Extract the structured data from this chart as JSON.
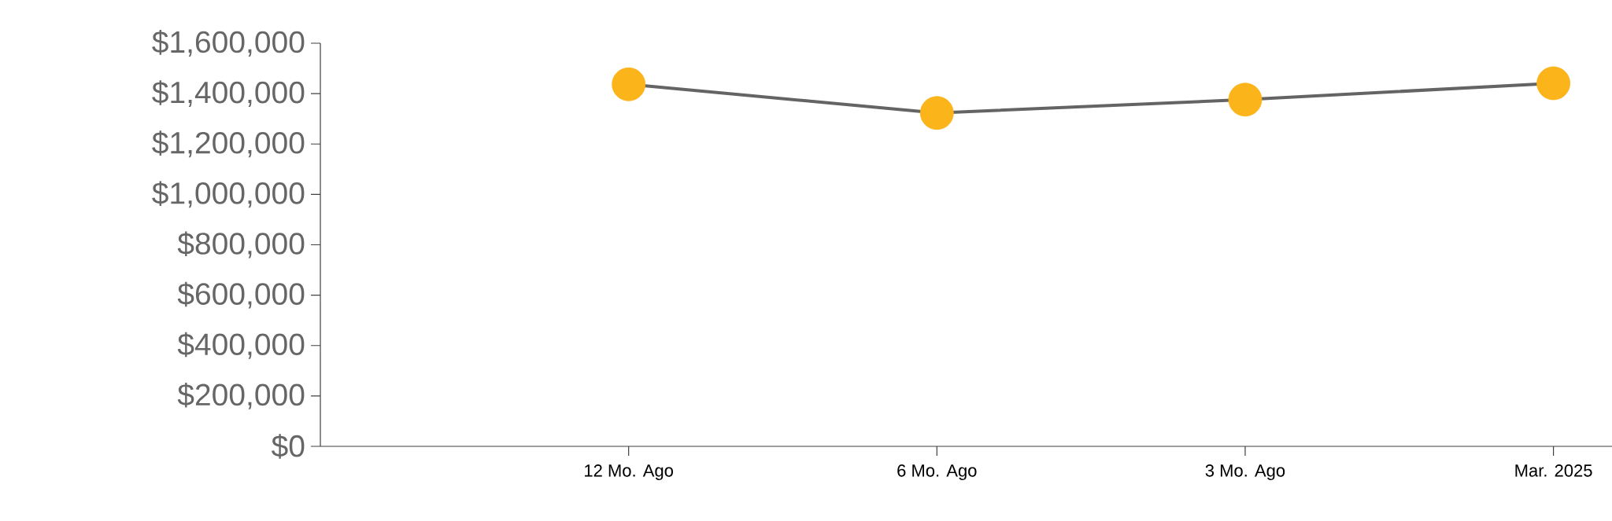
{
  "chart_data": {
    "type": "line",
    "categories": [
      "12 Mo. Ago",
      "6 Mo. Ago",
      "3 Mo. Ago",
      "Mar. 2025"
    ],
    "values": [
      1437000,
      1323000,
      1376000,
      1441000
    ],
    "color": "#646464",
    "colors": [
      "#fbb41a",
      "#fbb41a",
      "#fbb41a",
      "#fbb41a"
    ],
    "marker": "circle",
    "ylim": [
      0,
      1600000
    ],
    "yticks": [
      {
        "value": 0,
        "label": "$0"
      },
      {
        "value": 200000,
        "label": "$200,000"
      },
      {
        "value": 400000,
        "label": "$400,000"
      },
      {
        "value": 600000,
        "label": "$600,000"
      },
      {
        "value": 800000,
        "label": "$800,000"
      },
      {
        "value": 1000000,
        "label": "$1,000,000"
      },
      {
        "value": 1200000,
        "label": "$1,200,000"
      },
      {
        "value": 1400000,
        "label": "$1,400,000"
      },
      {
        "value": 1600000,
        "label": "$1,600,000"
      }
    ],
    "line_style": "solid"
  }
}
